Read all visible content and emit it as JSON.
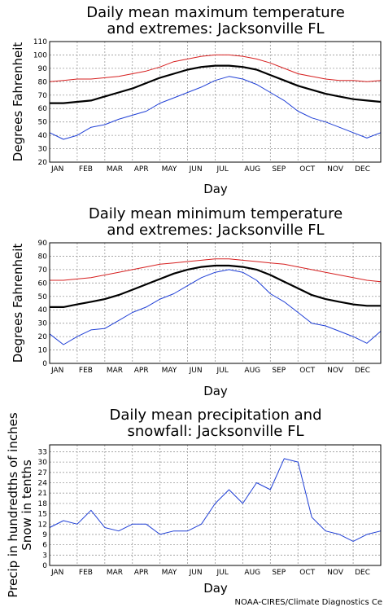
{
  "credit": "NOAA-CIRES/Climate Diagnostics Ce",
  "colors": {
    "mean": "#000000",
    "high_extreme": "#d62020",
    "low_extreme": "#1f3fd6",
    "precip": "#1f3fd6",
    "snow": "#d62020"
  },
  "chart_data": [
    {
      "type": "line",
      "title_lines": [
        "Daily mean maximum temperature",
        "and extremes: Jacksonville FL"
      ],
      "ylabel": "Degrees Fahrenheit",
      "xlabel": "Day",
      "month_labels": [
        "JAN",
        "FEB",
        "MAR",
        "APR",
        "MAY",
        "JUN",
        "JUL",
        "AUG",
        "SEP",
        "OCT",
        "NOV",
        "DEC"
      ],
      "ylim": [
        20,
        110
      ],
      "yticks": [
        20,
        30,
        40,
        50,
        60,
        70,
        80,
        90,
        100,
        110
      ],
      "grid": true,
      "series": [
        {
          "key": "high_extreme",
          "values": [
            80,
            81,
            82,
            82,
            83,
            84,
            86,
            88,
            91,
            95,
            97,
            99,
            100,
            100,
            99,
            97,
            94,
            90,
            86,
            84,
            82,
            81,
            81,
            80,
            81
          ]
        },
        {
          "key": "mean",
          "values": [
            64,
            64,
            65,
            66,
            69,
            72,
            75,
            79,
            83,
            86,
            89,
            91,
            92,
            92,
            91,
            89,
            85,
            81,
            77,
            74,
            71,
            69,
            67,
            66,
            65
          ]
        },
        {
          "key": "low_extreme",
          "values": [
            42,
            37,
            40,
            46,
            48,
            52,
            55,
            58,
            64,
            68,
            72,
            76,
            81,
            84,
            82,
            78,
            72,
            66,
            58,
            53,
            50,
            46,
            42,
            38,
            42
          ]
        }
      ]
    },
    {
      "type": "line",
      "title_lines": [
        "Daily mean minimum temperature",
        "and extremes: Jacksonville FL"
      ],
      "ylabel": "Degrees Fahrenheit",
      "xlabel": "Day",
      "month_labels": [
        "JAN",
        "FEB",
        "MAR",
        "APR",
        "MAY",
        "JUN",
        "JUL",
        "AUG",
        "SEP",
        "OCT",
        "NOV",
        "DEC"
      ],
      "ylim": [
        0,
        90
      ],
      "yticks": [
        0,
        10,
        20,
        30,
        40,
        50,
        60,
        70,
        80,
        90
      ],
      "grid": true,
      "series": [
        {
          "key": "high_extreme",
          "values": [
            62,
            62,
            63,
            64,
            66,
            68,
            70,
            72,
            74,
            75,
            76,
            77,
            78,
            78,
            77,
            76,
            75,
            74,
            72,
            70,
            68,
            66,
            64,
            62,
            61
          ]
        },
        {
          "key": "mean",
          "values": [
            42,
            42,
            44,
            46,
            48,
            51,
            55,
            59,
            63,
            67,
            70,
            72,
            73,
            73,
            72,
            70,
            66,
            61,
            56,
            51,
            48,
            46,
            44,
            43,
            43
          ]
        },
        {
          "key": "low_extreme",
          "values": [
            22,
            14,
            20,
            25,
            26,
            32,
            38,
            42,
            48,
            52,
            58,
            64,
            68,
            70,
            68,
            62,
            52,
            46,
            38,
            30,
            28,
            24,
            20,
            15,
            24
          ]
        }
      ]
    },
    {
      "type": "line",
      "title_lines": [
        "Daily mean precipitation and",
        "snowfall: Jacksonville FL"
      ],
      "ylabel_lines": [
        "Precip in hundredths of inches",
        "Snow in tenths"
      ],
      "xlabel": "Day",
      "month_labels": [
        "JAN",
        "FEB",
        "MAR",
        "APR",
        "MAY",
        "JUN",
        "JUL",
        "AUG",
        "SEP",
        "OCT",
        "NOV",
        "DEC"
      ],
      "ylim": [
        0,
        35
      ],
      "yticks": [
        0,
        3,
        6,
        9,
        12,
        15,
        18,
        21,
        24,
        27,
        30,
        33
      ],
      "grid": true,
      "series": [
        {
          "key": "precip",
          "values": [
            11,
            13,
            12,
            16,
            11,
            10,
            12,
            12,
            9,
            10,
            10,
            12,
            18,
            22,
            18,
            24,
            22,
            31,
            30,
            14,
            10,
            9,
            7,
            9,
            10
          ]
        },
        {
          "key": "snow",
          "values": [
            0,
            0,
            0,
            0,
            0,
            0,
            0,
            0,
            0,
            0,
            0,
            0,
            0,
            0,
            0,
            0,
            0,
            0,
            0,
            0,
            0,
            0,
            0,
            0,
            0
          ]
        }
      ]
    }
  ]
}
